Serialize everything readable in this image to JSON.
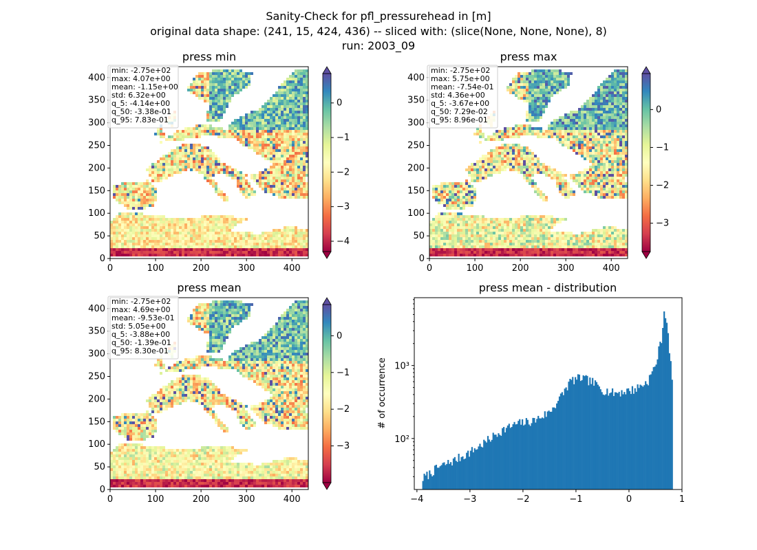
{
  "suptitle": [
    "Sanity-Check for pfl_pressurehead in [m]",
    "original data shape: (241, 15, 424, 436) -- sliced with: (slice(None, None, None), 8)",
    "run: 2003_09"
  ],
  "panels": [
    {
      "title": "press min",
      "stats": [
        "min: -2.75e+02",
        "max: 4.07e+00",
        "mean: -1.15e+00",
        "std: 6.32e+00",
        "q_5: -4.14e+00",
        "q_50: -3.38e-01",
        "q_95: 7.83e-01"
      ],
      "colorbar": {
        "vmin": -4.3,
        "vmax": 0.85,
        "ticks": [
          "0",
          "−1",
          "−2",
          "−3",
          "−4"
        ],
        "tick_values": [
          0,
          -1,
          -2,
          -3,
          -4
        ]
      }
    },
    {
      "title": "press max",
      "stats": [
        "min: -2.75e+02",
        "max: 5.75e+00",
        "mean: -7.54e-01",
        "std: 4.36e+00",
        "q_5: -3.67e+00",
        "q_50: 7.29e-02",
        "q_95: 8.96e-01"
      ],
      "colorbar": {
        "vmin": -3.75,
        "vmax": 0.95,
        "ticks": [
          "0",
          "−1",
          "−2",
          "−3"
        ],
        "tick_values": [
          0,
          -1,
          -2,
          -3
        ]
      }
    },
    {
      "title": "press mean",
      "stats": [
        "min: -2.75e+02",
        "max: 4.69e+00",
        "mean: -9.53e-01",
        "std: 5.05e+00",
        "q_5: -3.88e+00",
        "q_50: -1.39e-01",
        "q_95: 8.30e-01"
      ],
      "colorbar": {
        "vmin": -4.0,
        "vmax": 0.85,
        "ticks": [
          "0",
          "−1",
          "−2",
          "−3"
        ],
        "tick_values": [
          0,
          -1,
          -2,
          -3
        ]
      }
    }
  ],
  "map_axes": {
    "x_ticks": [
      "0",
      "100",
      "200",
      "300",
      "400"
    ],
    "x_tick_values": [
      0,
      100,
      200,
      300,
      400
    ],
    "y_ticks": [
      "0",
      "50",
      "100",
      "150",
      "200",
      "250",
      "300",
      "350",
      "400"
    ],
    "y_tick_values": [
      0,
      50,
      100,
      150,
      200,
      250,
      300,
      350,
      400
    ],
    "xlim": [
      0,
      436
    ],
    "ylim": [
      0,
      424
    ]
  },
  "colors": {
    "colormap": [
      "#9e0142",
      "#d53e4f",
      "#f46d43",
      "#fdae61",
      "#fee08b",
      "#ffffbf",
      "#e6f598",
      "#abdda4",
      "#66c2a5",
      "#3288bd",
      "#5e4fa2"
    ],
    "bar": "#1f77b4"
  },
  "chart_data": {
    "type": "bar",
    "title": "press mean - distribution",
    "xlabel": "",
    "ylabel": "# of occurrence",
    "yscale": "log",
    "xlim": [
      -4.05,
      1.0
    ],
    "ylim": [
      20,
      8500
    ],
    "x_ticks": [
      "−4",
      "−3",
      "−2",
      "−1",
      "0",
      "1"
    ],
    "x_tick_values": [
      -4,
      -3,
      -2,
      -1,
      0,
      1
    ],
    "y_ticks": [
      "10²",
      "10³"
    ],
    "y_tick_values": [
      100,
      1000
    ],
    "bin_width": 0.025,
    "control_points": [
      {
        "x": -3.9,
        "y": 28
      },
      {
        "x": -3.6,
        "y": 40
      },
      {
        "x": -3.3,
        "y": 50
      },
      {
        "x": -3.0,
        "y": 65
      },
      {
        "x": -2.7,
        "y": 90
      },
      {
        "x": -2.4,
        "y": 130
      },
      {
        "x": -2.1,
        "y": 160
      },
      {
        "x": -1.8,
        "y": 175
      },
      {
        "x": -1.5,
        "y": 230
      },
      {
        "x": -1.3,
        "y": 360
      },
      {
        "x": -1.1,
        "y": 620
      },
      {
        "x": -0.9,
        "y": 680
      },
      {
        "x": -0.7,
        "y": 600
      },
      {
        "x": -0.5,
        "y": 470
      },
      {
        "x": -0.3,
        "y": 420
      },
      {
        "x": -0.1,
        "y": 440
      },
      {
        "x": 0.1,
        "y": 470
      },
      {
        "x": 0.35,
        "y": 600
      },
      {
        "x": 0.5,
        "y": 1000
      },
      {
        "x": 0.62,
        "y": 2500
      },
      {
        "x": 0.67,
        "y": 6300
      },
      {
        "x": 0.72,
        "y": 3500
      },
      {
        "x": 0.77,
        "y": 1300
      },
      {
        "x": 0.81,
        "y": 750
      }
    ]
  }
}
